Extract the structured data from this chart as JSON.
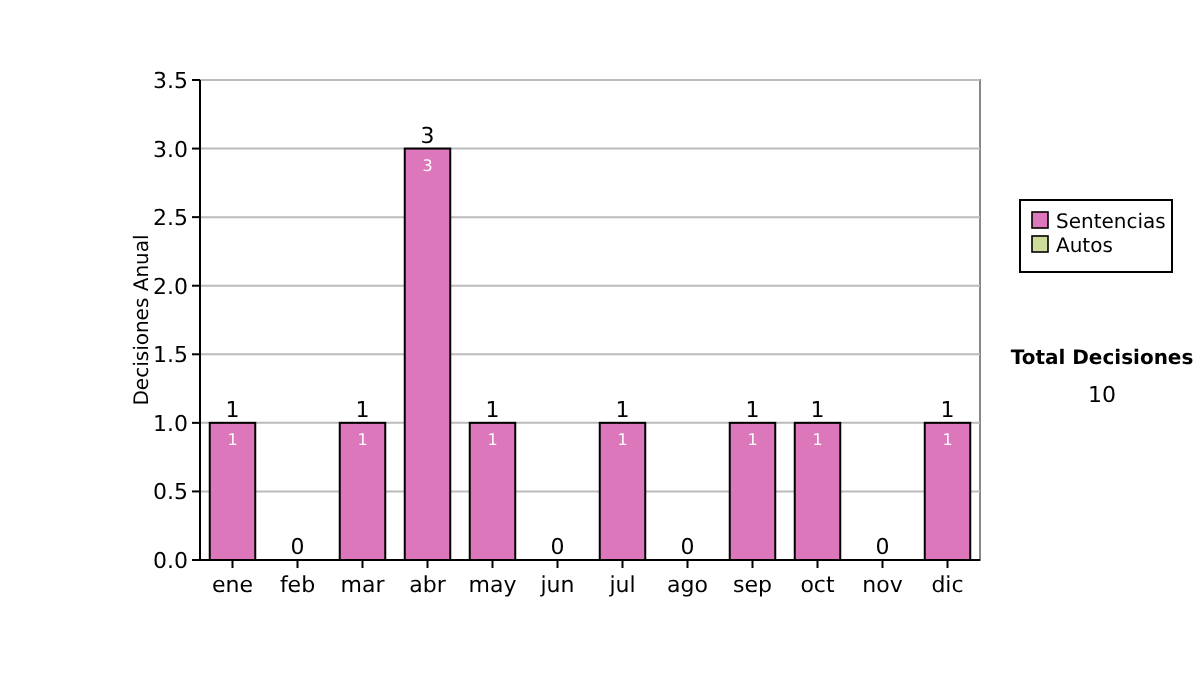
{
  "chart_data": {
    "type": "bar",
    "stacked": true,
    "ylabel": "Decisiones Anual",
    "categories": [
      "ene",
      "feb",
      "mar",
      "abr",
      "may",
      "jun",
      "jul",
      "ago",
      "sep",
      "oct",
      "nov",
      "dic"
    ],
    "series": [
      {
        "name": "Sentencias",
        "color": "#dd77bb",
        "values": [
          1,
          0,
          1,
          3,
          1,
          0,
          1,
          0,
          1,
          1,
          0,
          1
        ],
        "value_labels": [
          "1",
          null,
          "1",
          "3",
          "1",
          null,
          "1",
          null,
          "1",
          "1",
          null,
          "1"
        ]
      },
      {
        "name": "Autos",
        "color": "#ccdd99",
        "values": [
          0,
          0,
          0,
          0,
          0,
          0,
          0,
          0,
          0,
          0,
          0,
          0
        ]
      }
    ],
    "totals": [
      "1",
      "0",
      "1",
      "3",
      "1",
      "0",
      "1",
      "0",
      "1",
      "1",
      "0",
      "1"
    ],
    "ylim": [
      0,
      3.5
    ],
    "yticks": [
      {
        "value": 0,
        "label": "0.0"
      },
      {
        "value": 0.5,
        "label": "0.5"
      },
      {
        "value": 1,
        "label": "1.0"
      },
      {
        "value": 1.5,
        "label": "1.5"
      },
      {
        "value": 2,
        "label": "2.0"
      },
      {
        "value": 2.5,
        "label": "2.5"
      },
      {
        "value": 3,
        "label": "3.0"
      },
      {
        "value": 3.5,
        "label": "3.5"
      }
    ],
    "grid": "y",
    "legend": "right",
    "annotations": [
      "Total Decisiones",
      "10"
    ]
  }
}
